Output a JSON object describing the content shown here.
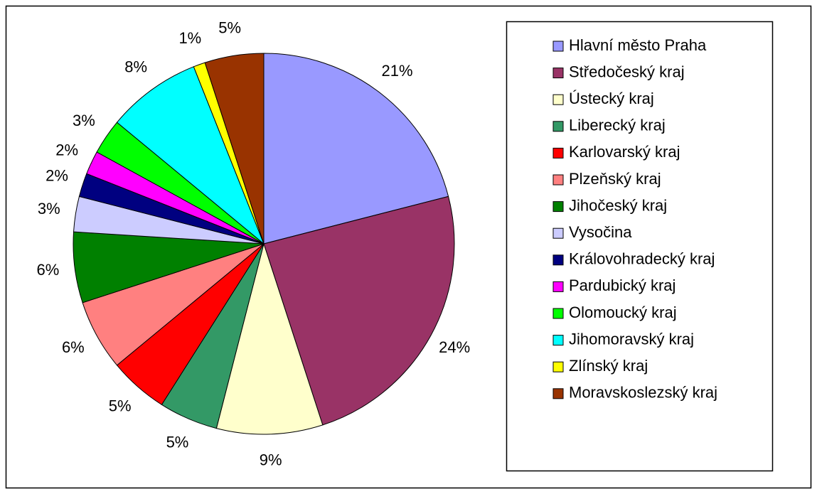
{
  "chart_data": {
    "type": "pie",
    "categories": [
      "Hlavní město Praha",
      "Středočeský kraj",
      "Ústecký kraj",
      "Liberecký kraj",
      "Karlovarský kraj",
      "Plzeňský kraj",
      "Jihočeský kraj",
      "Vysočina",
      "Královohradecký kraj",
      "Pardubický kraj",
      "Olomoucký kraj",
      "Jihomoravský kraj",
      "Zlínský kraj",
      "Moravskoslezský kraj"
    ],
    "values": [
      21,
      24,
      9,
      5,
      5,
      6,
      6,
      3,
      2,
      2,
      3,
      8,
      1,
      5
    ],
    "value_labels": [
      "21%",
      "24%",
      "9%",
      "5%",
      "5%",
      "6%",
      "6%",
      "3%",
      "2%",
      "2%",
      "3%",
      "8%",
      "1%",
      "5%"
    ],
    "colors": [
      "#9999ff",
      "#993366",
      "#ffffcc",
      "#339966",
      "#ff0000",
      "#ff8080",
      "#008000",
      "#ccccff",
      "#000080",
      "#ff00ff",
      "#00ff00",
      "#00ffff",
      "#ffff00",
      "#993300"
    ],
    "legend": "right"
  }
}
